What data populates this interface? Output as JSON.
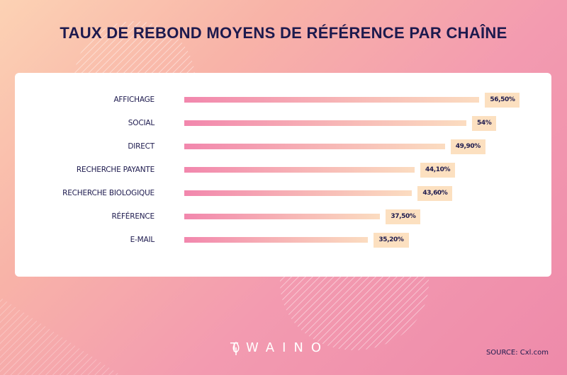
{
  "title": "TAUX DE REBOND MOYENS DE RÉFÉRENCE PAR CHAÎNE",
  "chart_data": {
    "type": "bar",
    "orientation": "horizontal",
    "title": "TAUX DE REBOND MOYENS DE RÉFÉRENCE PAR CHAÎNE",
    "categories": [
      "AFFICHAGE",
      "SOCIAL",
      "DIRECT",
      "RECHERCHE PAYANTE",
      "RECHERCHE BIOLOGIQUE",
      "RÉFÉRENCE",
      "E-MAIL"
    ],
    "values": [
      56.5,
      54,
      49.9,
      44.1,
      43.6,
      37.5,
      35.2
    ],
    "value_labels": [
      "56,50%",
      "54%",
      "49,90%",
      "44,10%",
      "43,60%",
      "37,50%",
      "35,20%"
    ],
    "xlim": [
      0,
      60
    ],
    "grid": false,
    "colors": {
      "bar_start": "#f287ad",
      "bar_end": "#fbdcc0",
      "label_bg": "#fce0c0",
      "text": "#1d1a4e"
    }
  },
  "brand": "TWAINO",
  "source": "SOURCE:  Cxl.com"
}
